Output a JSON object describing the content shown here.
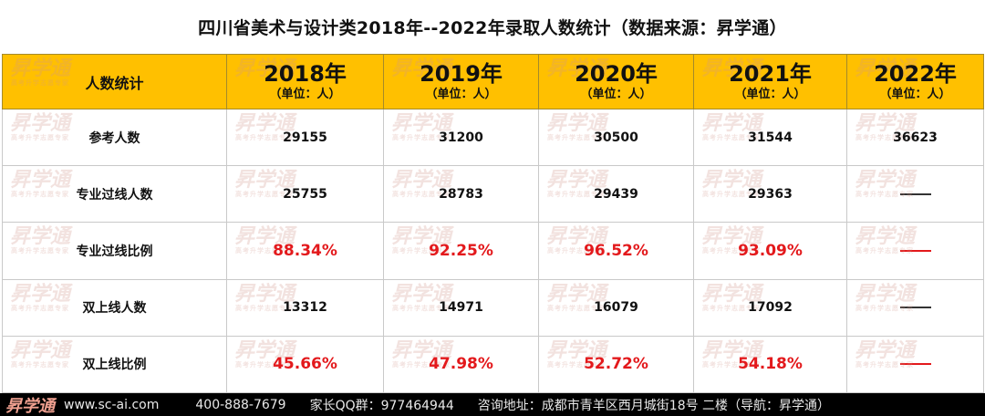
{
  "title": "四川省美术与设计类2018年--2022年录取人数统计（数据来源：昇学通）",
  "watermark": {
    "brand": "昇学通",
    "sub": "高考升学志愿专家"
  },
  "table": {
    "corner": "人数统计",
    "columns": [
      {
        "year": "2018年",
        "unit": "（单位：人）"
      },
      {
        "year": "2019年",
        "unit": "（单位：人）"
      },
      {
        "year": "2020年",
        "unit": "（单位：人）"
      },
      {
        "year": "2021年",
        "unit": "（单位：人）"
      },
      {
        "year": "2022年",
        "unit": "（单位：人）"
      }
    ],
    "rows": [
      {
        "label": "参考人数",
        "values": [
          "29155",
          "31200",
          "30500",
          "31544",
          "36623"
        ]
      },
      {
        "label": "专业过线人数",
        "values": [
          "25755",
          "28783",
          "29439",
          "29363",
          "—"
        ]
      },
      {
        "label": "专业过线比例",
        "values": [
          "88.34%",
          "92.25%",
          "96.52%",
          "93.09%",
          "—"
        ]
      },
      {
        "label": "双上线人数",
        "values": [
          "13312",
          "14971",
          "16079",
          "17092",
          "—"
        ]
      },
      {
        "label": "双上线比例",
        "values": [
          "45.66%",
          "47.98%",
          "52.72%",
          "54.18%",
          "—"
        ]
      }
    ]
  },
  "footer": {
    "logo": "昇学通",
    "website": "www.sc-ai.com",
    "phone": "400-888-7679",
    "qq": "家长QQ群：977464944",
    "address": "咨询地址：成都市青羊区西月城街18号 二楼（导航：昇学通）"
  },
  "colors": {
    "header_bg": "#ffc000",
    "percent_red": "#e3191c",
    "footer_bg": "#000000"
  }
}
